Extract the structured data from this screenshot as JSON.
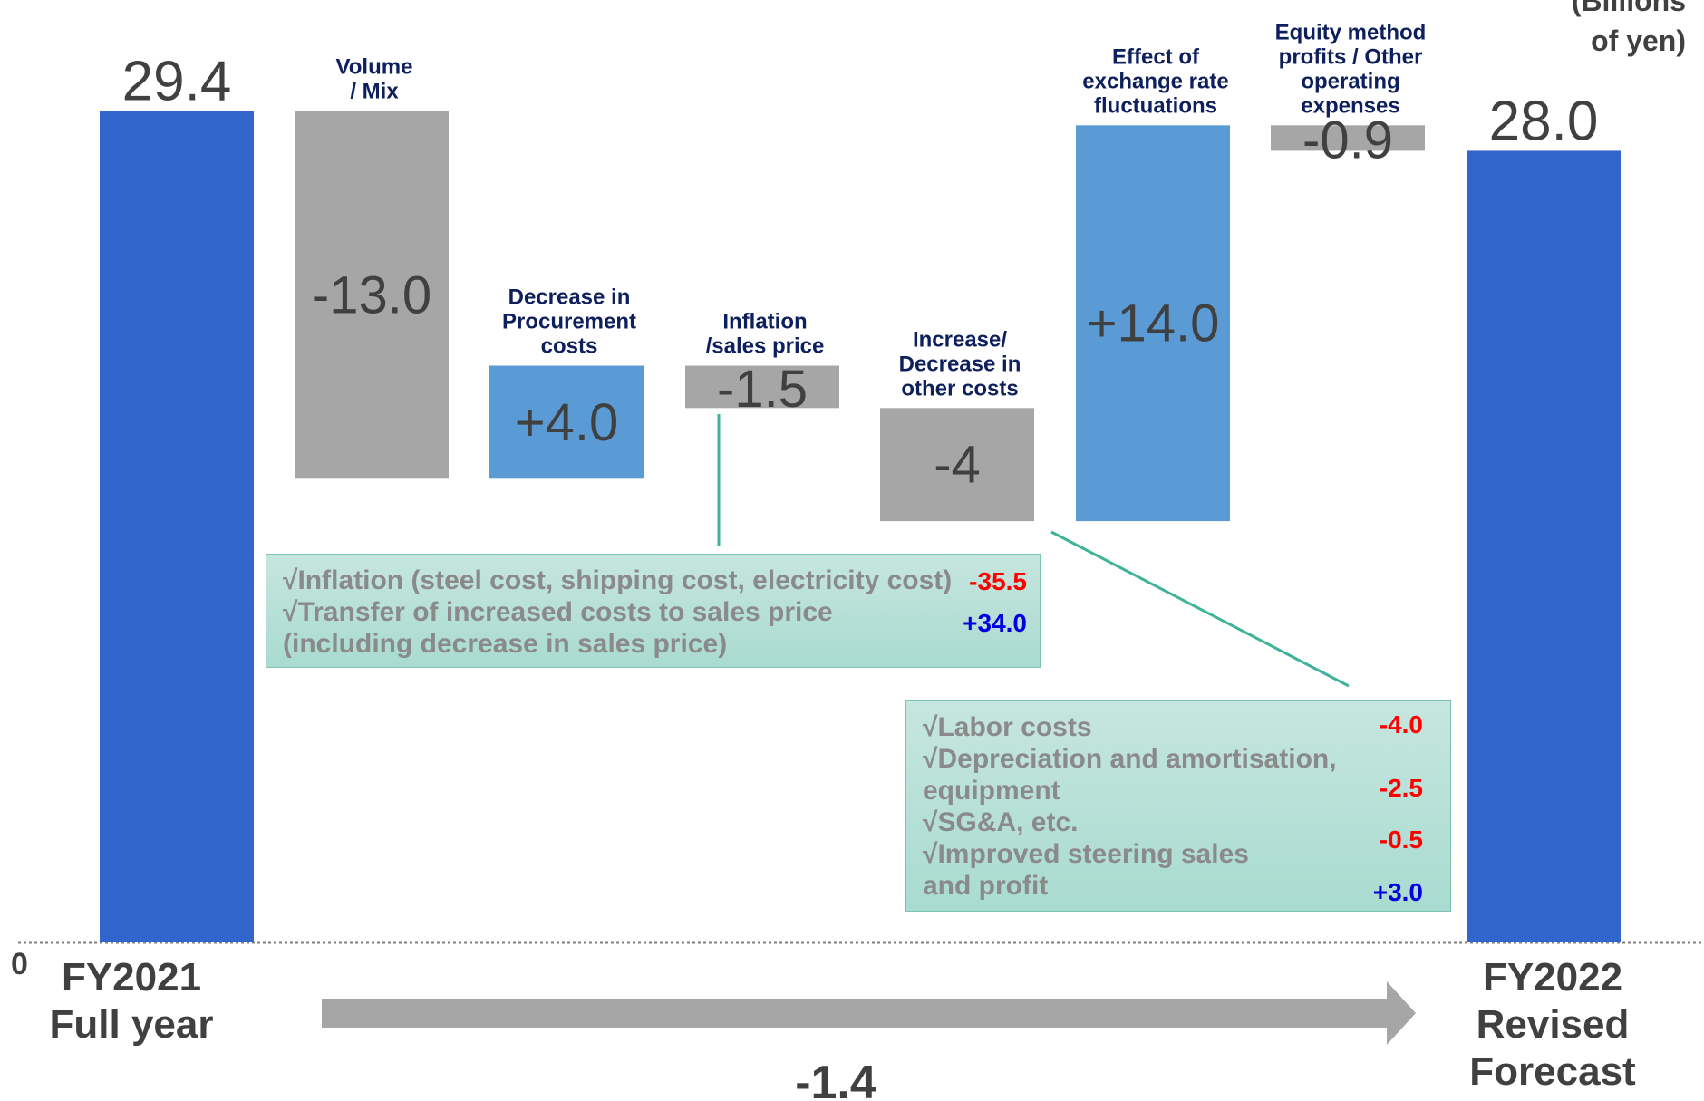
{
  "unit_label": [
    "(Billions",
    "of yen)"
  ],
  "zero_label": "0",
  "chart_data": {
    "type": "waterfall",
    "ylim": [
      0,
      30
    ],
    "steps": [
      {
        "label": [
          "FY2021",
          "Full year"
        ],
        "value": 29.4,
        "display": "29.4",
        "kind": "total",
        "color": "#3366cc"
      },
      {
        "label": [
          "Volume",
          "/ Mix"
        ],
        "value": -13.0,
        "display": "-13.0",
        "kind": "delta",
        "color": "#a6a6a6"
      },
      {
        "label": [
          "Decrease in",
          "Procurement",
          "costs"
        ],
        "value": 4.0,
        "display": "+4.0",
        "kind": "delta",
        "color": "#5b9bd5"
      },
      {
        "label": [
          "Inflation",
          "/sales price"
        ],
        "value": -1.5,
        "display": "-1.5",
        "kind": "delta",
        "color": "#a6a6a6"
      },
      {
        "label": [
          "Increase/",
          "Decrease in",
          "other costs"
        ],
        "value": -4.0,
        "display": "-4",
        "kind": "delta",
        "color": "#a6a6a6"
      },
      {
        "label": [
          "Effect of",
          "exchange rate",
          "fluctuations"
        ],
        "value": 14.0,
        "display": "+14.0",
        "kind": "delta",
        "color": "#5b9bd5"
      },
      {
        "label": [
          "Equity method",
          "profits / Other",
          "operating",
          "expenses"
        ],
        "value": -0.9,
        "display": "-0.9",
        "kind": "delta",
        "color": "#a6a6a6"
      },
      {
        "label": [
          "FY2022",
          "Revised",
          "Forecast"
        ],
        "value": 28.0,
        "display": "28.0",
        "kind": "total",
        "color": "#3366cc"
      }
    ],
    "net_change": "-1.4"
  },
  "annotations": {
    "inflation": {
      "lines": [
        "√Inflation (steel cost, shipping cost, electricity cost)",
        "√Transfer of increased costs to sales price",
        "  (including decrease in sales price)"
      ],
      "values": [
        "-35.5",
        "+34.0"
      ]
    },
    "other_costs": {
      "lines": [
        "√Labor costs",
        "√Depreciation and amortisation,",
        "  equipment",
        "√SG&A, etc.",
        "√Improved steering sales",
        "  and profit"
      ],
      "values": [
        "-4.0",
        "-2.5",
        "-0.5",
        "+3.0"
      ]
    }
  }
}
